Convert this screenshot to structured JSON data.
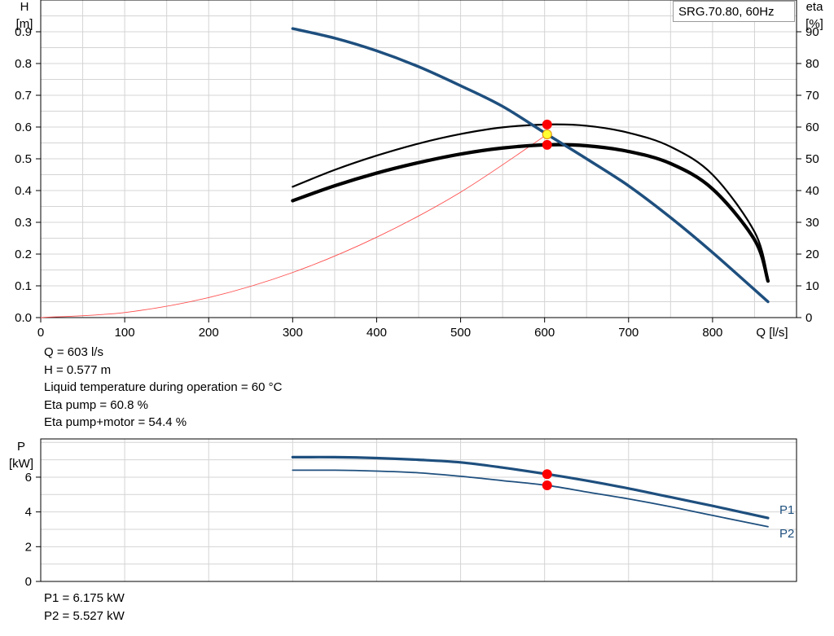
{
  "chart_data": [
    {
      "type": "line",
      "legend_label": "SRG.70.80, 60Hz",
      "x_label": "Q [l/s]",
      "y_label_left_1": "H",
      "y_label_left_2": "[m]",
      "y_label_right_1": "eta",
      "y_label_right_2": "[%]",
      "xlim": [
        0,
        900
      ],
      "ylim_left": [
        0,
        1.0
      ],
      "ylim_right": [
        0,
        100
      ],
      "x_ticks": [
        0,
        100,
        200,
        300,
        400,
        500,
        600,
        700,
        800
      ],
      "y_ticks_left": [
        0.0,
        0.1,
        0.2,
        0.3,
        0.4,
        0.5,
        0.6,
        0.7,
        0.8,
        0.9
      ],
      "y_ticks_right": [
        0,
        10,
        20,
        30,
        40,
        50,
        60,
        70,
        80,
        90
      ],
      "grid": true,
      "series": [
        {
          "axis": "left",
          "color": "#1e4f7e",
          "x": [
            300,
            350,
            400,
            450,
            500,
            550,
            603,
            650,
            700,
            750,
            800,
            866
          ],
          "y": [
            0.91,
            0.88,
            0.84,
            0.79,
            0.73,
            0.665,
            0.577,
            0.5,
            0.415,
            0.315,
            0.205,
            0.05
          ]
        },
        {
          "axis": "right",
          "color": "#000000",
          "x": [
            300,
            350,
            400,
            450,
            500,
            550,
            603,
            650,
            700,
            750,
            800,
            850,
            866
          ],
          "y": [
            41.2,
            46.5,
            51.0,
            54.8,
            57.8,
            59.9,
            60.8,
            60.4,
            58.2,
            53.8,
            45.0,
            27.0,
            12.5
          ]
        },
        {
          "axis": "right",
          "color": "#000000",
          "x": [
            300,
            350,
            400,
            450,
            500,
            550,
            603,
            650,
            700,
            750,
            800,
            850,
            866
          ],
          "y": [
            36.8,
            41.5,
            45.5,
            48.8,
            51.5,
            53.4,
            54.4,
            54.1,
            52.3,
            48.5,
            40.5,
            24.5,
            11.5
          ]
        },
        {
          "axis": "left",
          "color": "#ff4d4d",
          "x": [
            0,
            100,
            200,
            300,
            400,
            500,
            603
          ],
          "y": [
            0,
            0.016,
            0.063,
            0.142,
            0.253,
            0.395,
            0.577
          ]
        }
      ],
      "duty_points": [
        {
          "axis": "right",
          "x": 603,
          "y": 60.8,
          "color": "#ff0000"
        },
        {
          "axis": "right",
          "x": 603,
          "y": 54.4,
          "color": "#ff0000"
        },
        {
          "axis": "left",
          "x": 603,
          "y": 0.577,
          "color": "#ffff33"
        }
      ]
    },
    {
      "type": "line",
      "y_label_1": "P",
      "y_label_2": "[kW]",
      "xlim": [
        0,
        900
      ],
      "ylim": [
        0,
        8.2
      ],
      "y_ticks": [
        0,
        2,
        4,
        6
      ],
      "grid": true,
      "series": [
        {
          "name": "P1",
          "color": "#1e4f7e",
          "x": [
            300,
            350,
            400,
            450,
            500,
            550,
            603,
            650,
            700,
            750,
            800,
            866
          ],
          "y": [
            7.15,
            7.15,
            7.1,
            7.0,
            6.85,
            6.55,
            6.175,
            5.8,
            5.35,
            4.85,
            4.35,
            3.65
          ]
        },
        {
          "name": "P2",
          "color": "#1e4f7e",
          "x": [
            300,
            350,
            400,
            450,
            500,
            550,
            603,
            650,
            700,
            750,
            800,
            866
          ],
          "y": [
            6.4,
            6.4,
            6.35,
            6.25,
            6.05,
            5.8,
            5.527,
            5.15,
            4.75,
            4.3,
            3.8,
            3.15
          ]
        }
      ],
      "duty_points": [
        {
          "x": 603,
          "y": 6.175,
          "color": "#ff0000"
        },
        {
          "x": 603,
          "y": 5.527,
          "color": "#ff0000"
        }
      ]
    }
  ],
  "operating_info": {
    "q": "Q = 603 l/s",
    "h": "H = 0.577 m",
    "temp": "Liquid temperature during operation = 60 °C",
    "eta_pump": "Eta pump = 60.8 %",
    "eta_total": "Eta pump+motor = 54.4 %"
  },
  "power_info": {
    "p1": "P1 = 6.175 kW",
    "p2": "P2 = 5.527 kW"
  }
}
